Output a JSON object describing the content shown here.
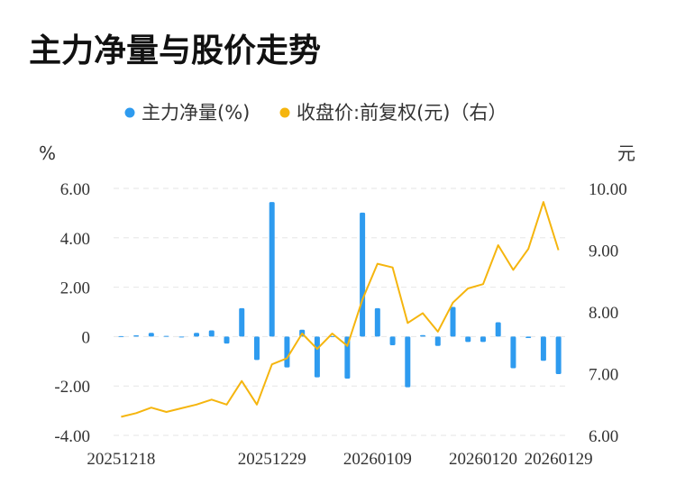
{
  "title": "主力净量与股价走势",
  "legend": [
    {
      "label": "主力净量(%)",
      "color": "#2e9bef"
    },
    {
      "label": "收盘价:前复权(元)（右）",
      "color": "#f5b50e"
    }
  ],
  "chart_data": {
    "type": "bar+line",
    "title": "主力净量与股价走势",
    "y_left_unit": "%",
    "y_right_unit": "元",
    "y_left_ticks": [
      "6.00",
      "4.00",
      "2.00",
      "0",
      "-2.00",
      "-4.00"
    ],
    "y_right_ticks": [
      "10.00",
      "9.00",
      "8.00",
      "7.00",
      "6.00"
    ],
    "ylim_left": [
      -4,
      6
    ],
    "ylim_right": [
      6,
      10
    ],
    "x_tick_labels": [
      "20251218",
      "20251229",
      "20260109",
      "20260120",
      "20260129"
    ],
    "x_tick_indices": [
      0,
      10,
      17,
      24,
      29
    ],
    "grid": true,
    "legend_position": "top-center",
    "series": [
      {
        "name": "主力净量(%)",
        "type": "bar",
        "axis": "left",
        "color": "#2e9bef",
        "values": [
          0.02,
          0.05,
          0.15,
          0.03,
          -0.02,
          0.15,
          0.25,
          -0.28,
          1.15,
          -0.95,
          5.45,
          -1.25,
          0.28,
          -1.65,
          0.02,
          -1.7,
          5.02,
          1.15,
          -0.35,
          -2.05,
          0.06,
          -0.38,
          1.2,
          -0.22,
          -0.22,
          0.58,
          -1.28,
          -0.06,
          -0.98,
          -1.52
        ]
      },
      {
        "name": "收盘价:前复权(元)（右）",
        "type": "line",
        "axis": "right",
        "color": "#f5b50e",
        "values": [
          6.3,
          6.36,
          6.45,
          6.38,
          6.44,
          6.5,
          6.58,
          6.5,
          6.88,
          6.5,
          7.15,
          7.25,
          7.65,
          7.4,
          7.65,
          7.45,
          8.2,
          8.78,
          8.72,
          7.82,
          7.98,
          7.68,
          8.15,
          8.38,
          8.45,
          9.08,
          8.68,
          9.02,
          9.78,
          9.0
        ]
      }
    ]
  }
}
